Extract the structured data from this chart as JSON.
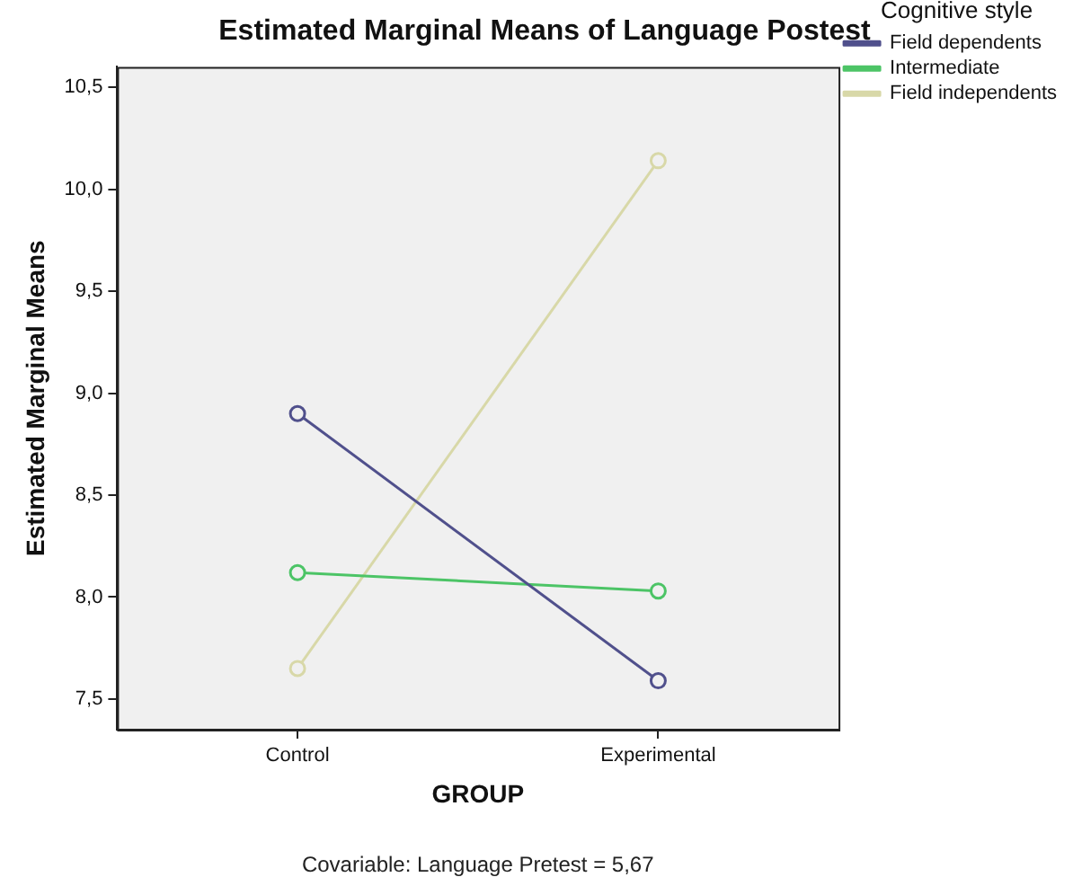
{
  "chart_data": {
    "type": "line",
    "title": "Estimated Marginal Means of Language Postest",
    "xlabel": "GROUP",
    "ylabel": "Estimated Marginal Means",
    "legend_title": "Cognitive style",
    "categories": [
      "Control",
      "Experimental"
    ],
    "series": [
      {
        "name": "Field dependents",
        "color": "#50508c",
        "values": [
          8.9,
          7.59
        ]
      },
      {
        "name": "Intermediate",
        "color": "#4cc466",
        "values": [
          8.12,
          8.03
        ]
      },
      {
        "name": "Field independents",
        "color": "#d8d8a8",
        "values": [
          7.65,
          10.14
        ]
      }
    ],
    "ylim": [
      7.35,
      10.6
    ],
    "yticks": [
      {
        "value": 7.5,
        "label": "7,5"
      },
      {
        "value": 8.0,
        "label": "8,0"
      },
      {
        "value": 8.5,
        "label": "8,5"
      },
      {
        "value": 9.0,
        "label": "9,0"
      },
      {
        "value": 9.5,
        "label": "9,5"
      },
      {
        "value": 10.0,
        "label": "10,0"
      },
      {
        "value": 10.5,
        "label": "10,5"
      }
    ],
    "grid": false,
    "legend": "right",
    "marker": "circle",
    "line_style": "solid",
    "annotations": [
      "Covariable: Language Pretest = 5,67"
    ]
  }
}
